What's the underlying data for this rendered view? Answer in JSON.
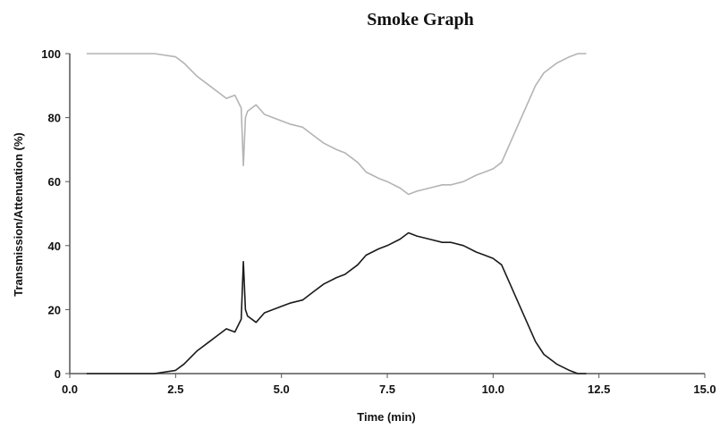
{
  "chart_data": {
    "type": "line",
    "title": "Smoke Graph",
    "xlabel": "Time (min)",
    "ylabel": "Transmission/Attenuation (%)",
    "xlim": [
      0,
      15
    ],
    "ylim": [
      0,
      100
    ],
    "x_ticks": [
      "0.0",
      "2.5",
      "5.0",
      "7.5",
      "10.0",
      "12.5",
      "15.0"
    ],
    "y_ticks": [
      "0",
      "20",
      "40",
      "60",
      "80",
      "100"
    ],
    "grid": false,
    "legend": "none",
    "colors": {
      "transmission": "#b4b4b4",
      "attenuation": "#1a1a1a",
      "axis": "#555555"
    },
    "series": [
      {
        "x": [
          0.4,
          1.0,
          1.5,
          2.0,
          2.5,
          2.7,
          3.0,
          3.3,
          3.5,
          3.7,
          3.9,
          4.05,
          4.1,
          4.15,
          4.2,
          4.4,
          4.6,
          4.8,
          5.0,
          5.2,
          5.5,
          5.8,
          6.0,
          6.3,
          6.5,
          6.8,
          7.0,
          7.3,
          7.5,
          7.8,
          8.0,
          8.2,
          8.5,
          8.8,
          9.0,
          9.3,
          9.6,
          9.8,
          10.0,
          10.2,
          10.4,
          10.6,
          10.8,
          11.0,
          11.2,
          11.5,
          11.8,
          12.0,
          12.2
        ],
        "values": [
          100,
          100,
          100,
          100,
          99,
          97,
          93,
          90,
          88,
          86,
          87,
          83,
          65,
          80,
          82,
          84,
          81,
          80,
          79,
          78,
          77,
          74,
          72,
          70,
          69,
          66,
          63,
          61,
          60,
          58,
          56,
          57,
          58,
          59,
          59,
          60,
          62,
          63,
          64,
          66,
          72,
          78,
          84,
          90,
          94,
          97,
          99,
          100,
          100
        ]
      },
      {
        "x": [
          0.4,
          1.0,
          1.5,
          2.0,
          2.5,
          2.7,
          3.0,
          3.3,
          3.5,
          3.7,
          3.9,
          4.05,
          4.1,
          4.15,
          4.2,
          4.4,
          4.6,
          4.8,
          5.0,
          5.2,
          5.5,
          5.8,
          6.0,
          6.3,
          6.5,
          6.8,
          7.0,
          7.3,
          7.5,
          7.8,
          8.0,
          8.2,
          8.5,
          8.8,
          9.0,
          9.3,
          9.6,
          9.8,
          10.0,
          10.2,
          10.4,
          10.6,
          10.8,
          11.0,
          11.2,
          11.5,
          11.8,
          12.0,
          12.2
        ],
        "values": [
          0,
          0,
          0,
          0,
          1,
          3,
          7,
          10,
          12,
          14,
          13,
          17,
          35,
          20,
          18,
          16,
          19,
          20,
          21,
          22,
          23,
          26,
          28,
          30,
          31,
          34,
          37,
          39,
          40,
          42,
          44,
          43,
          42,
          41,
          41,
          40,
          38,
          37,
          36,
          34,
          28,
          22,
          16,
          10,
          6,
          3,
          1,
          0,
          0
        ]
      }
    ]
  }
}
